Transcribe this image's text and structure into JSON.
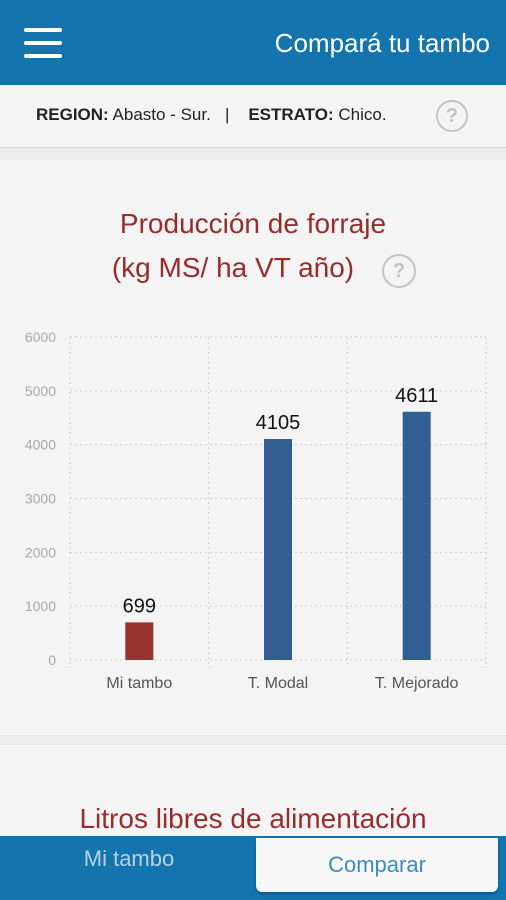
{
  "appbar": {
    "title": "Compará tu tambo",
    "menu_icon": "hamburger-menu-icon"
  },
  "filters": {
    "region_label": "REGION:",
    "region_value": "Abasto - Sur.",
    "separator": "|",
    "estrato_label": "ESTRATO:",
    "estrato_value": "Chico.",
    "help_symbol": "?"
  },
  "chart_card": {
    "title_line1": "Producción de forraje",
    "title_line2": "(kg MS/ ha VT año)",
    "help_symbol": "?"
  },
  "chart_data": {
    "type": "bar",
    "title": "Producción de forraje (kg MS/ ha VT año)",
    "categories": [
      "Mi tambo",
      "T. Modal",
      "T. Mejorado"
    ],
    "values": [
      699,
      4105,
      4611
    ],
    "data_labels": [
      "699",
      "4105",
      "4611"
    ],
    "bar_colors": [
      "#983230",
      "#325f93",
      "#325f93"
    ],
    "ylim": [
      0,
      6000
    ],
    "yticks": [
      0,
      1000,
      2000,
      3000,
      4000,
      5000,
      6000
    ],
    "ytick_labels": [
      "0",
      "1000",
      "2000",
      "3000",
      "4000",
      "5000",
      "6000"
    ],
    "grid": true,
    "xlabel": "",
    "ylabel": ""
  },
  "next_card": {
    "title": "Litros libres de alimentación"
  },
  "bottom_tabs": {
    "mi_tambo": "Mi tambo",
    "comparar": "Comparar",
    "active": "Comparar"
  },
  "colors": {
    "appbar": "#1474ae",
    "title_red": "#9a2b2b",
    "bar_blue": "#325f93",
    "bar_red": "#983230"
  }
}
